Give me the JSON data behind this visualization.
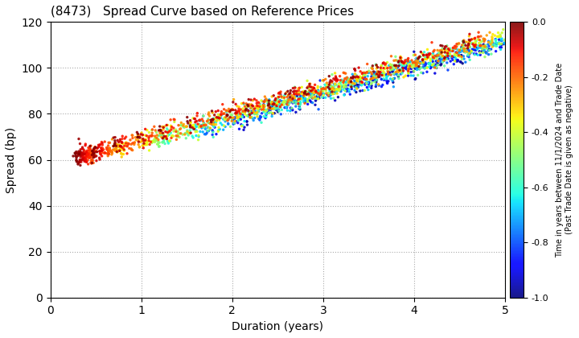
{
  "title": "(8473)   Spread Curve based on Reference Prices",
  "xlabel": "Duration (years)",
  "ylabel": "Spread (bp)",
  "xlim": [
    0,
    5
  ],
  "ylim": [
    0,
    120
  ],
  "xticks": [
    0,
    1,
    2,
    3,
    4,
    5
  ],
  "yticks": [
    0,
    20,
    40,
    60,
    80,
    100,
    120
  ],
  "colorbar_label_line1": "Time in years between 11/1/2024 and Trade Date",
  "colorbar_label_line2": "(Past Trade Date is given as negative)",
  "colorbar_vmin": -1.0,
  "colorbar_vmax": 0.0,
  "colorbar_ticks": [
    0.0,
    -0.2,
    -0.4,
    -0.6,
    -0.8,
    -1.0
  ],
  "seed": 42,
  "background_color": "#ffffff"
}
